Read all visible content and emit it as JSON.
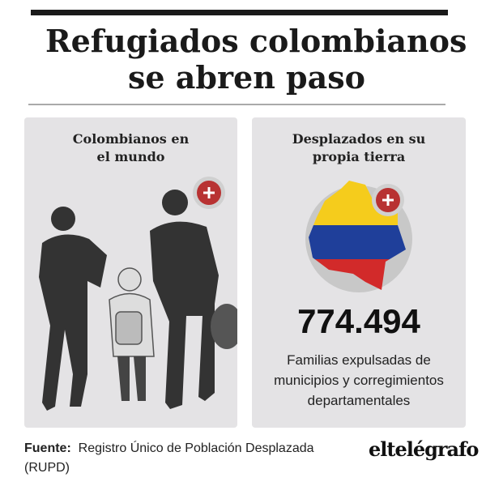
{
  "header": {
    "title_lines": [
      "Refugiados colombianos",
      "se abren paso"
    ]
  },
  "cards": [
    {
      "title_lines": [
        "Colombianos en",
        "el mundo"
      ]
    },
    {
      "title_lines": [
        "Desplazados en su",
        "propia tierra"
      ],
      "figure": "774.494",
      "description_lines": [
        "Familias expulsadas de",
        "municipios y corregimientos",
        "departamentales"
      ]
    }
  ],
  "footer": {
    "source_label": "Fuente:",
    "source_lines": [
      "Registro Único de Población Desplazada",
      "(RUPD)"
    ],
    "logo": "eltelégrafo"
  }
}
